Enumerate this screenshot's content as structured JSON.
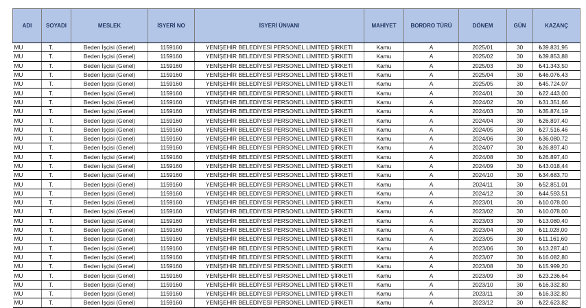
{
  "headers": [
    "ADI",
    "SOYADI",
    "MESLEK",
    "İSYERİ NO",
    "İSYERİ ÜNVANI",
    "MAHİYET",
    "BORDRO TÜRÜ",
    "DÖNEM",
    "GÜN",
    "KAZANÇ"
  ],
  "colors": {
    "header_bg": "#b4c6e7",
    "header_text": "#1f3864"
  },
  "row_common": {
    "adi": "MU",
    "soyadi": "T.",
    "meslek": "Beden İşçisi (Genel)",
    "isyeri_no": "1159160",
    "unvan": "YENİŞEHİR BELEDİYESİ PERSONEL LİMİTED ŞİRKETİ",
    "mahiyet": "Kamu",
    "bordro": "A",
    "gun": "30"
  },
  "rows": [
    {
      "donem": "2025/01",
      "kazanc": "₺39.831,95"
    },
    {
      "donem": "2025/02",
      "kazanc": "₺39.853,88"
    },
    {
      "donem": "2025/03",
      "kazanc": "₺41.343,50"
    },
    {
      "donem": "2025/04",
      "kazanc": "₺46.076,43"
    },
    {
      "donem": "2025/05",
      "kazanc": "₺45.724,07"
    },
    {
      "donem": "2024/01",
      "kazanc": "₺22.443,00"
    },
    {
      "donem": "2024/02",
      "kazanc": "₺31.351,66"
    },
    {
      "donem": "2024/03",
      "kazanc": "₺35.874,19"
    },
    {
      "donem": "2024/04",
      "kazanc": "₺26.897,40"
    },
    {
      "donem": "2024/05",
      "kazanc": "₺27.516,46"
    },
    {
      "donem": "2024/06",
      "kazanc": "₺36.080,72"
    },
    {
      "donem": "2024/07",
      "kazanc": "₺26.897,40"
    },
    {
      "donem": "2024/08",
      "kazanc": "₺26.897,40"
    },
    {
      "donem": "2024/09",
      "kazanc": "₺43.018,44"
    },
    {
      "donem": "2024/10",
      "kazanc": "₺34.683,70"
    },
    {
      "donem": "2024/11",
      "kazanc": "₺52.851,01"
    },
    {
      "donem": "2024/12",
      "kazanc": "₺44.593,51"
    },
    {
      "donem": "2023/01",
      "kazanc": "₺10.078,00"
    },
    {
      "donem": "2023/02",
      "kazanc": "₺10.078,00"
    },
    {
      "donem": "2023/03",
      "kazanc": "₺13.080,40"
    },
    {
      "donem": "2023/04",
      "kazanc": "₺11.028,00"
    },
    {
      "donem": "2023/05",
      "kazanc": "₺11.161,60"
    },
    {
      "donem": "2023/06",
      "kazanc": "₺13.287,40"
    },
    {
      "donem": "2023/07",
      "kazanc": "₺16.082,80"
    },
    {
      "donem": "2023/08",
      "kazanc": "₺15.999,20"
    },
    {
      "donem": "2023/09",
      "kazanc": "₺23.236,64"
    },
    {
      "donem": "2023/10",
      "kazanc": "₺16.332,80"
    },
    {
      "donem": "2023/11",
      "kazanc": "₺16.332,80"
    },
    {
      "donem": "2023/12",
      "kazanc": "₺22.623,82"
    }
  ]
}
